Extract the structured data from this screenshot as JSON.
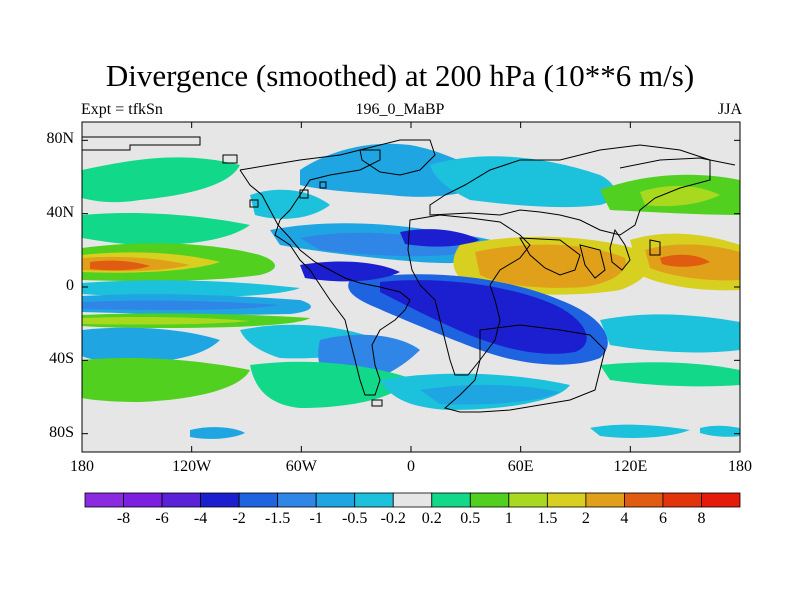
{
  "header": {
    "title": "Divergence (smoothed) at 200 hPa (10**6 m/s)",
    "left_label": "Expt = tfkSn",
    "center_label": "196_0_MaBP",
    "right_label": "JJA"
  },
  "axes": {
    "y_ticks": [
      {
        "value": 80,
        "label": "80N"
      },
      {
        "value": 40,
        "label": "40N"
      },
      {
        "value": 0,
        "label": "0"
      },
      {
        "value": -40,
        "label": "40S"
      },
      {
        "value": -80,
        "label": "80S"
      }
    ],
    "x_ticks": [
      {
        "value": -180,
        "label": "180"
      },
      {
        "value": -120,
        "label": "120W"
      },
      {
        "value": -60,
        "label": "60W"
      },
      {
        "value": 0,
        "label": "0"
      },
      {
        "value": 60,
        "label": "60E"
      },
      {
        "value": 120,
        "label": "120E"
      },
      {
        "value": 180,
        "label": "180"
      }
    ]
  },
  "colorbar": {
    "colors": [
      "#8a2be2",
      "#7b1fe0",
      "#5a22d8",
      "#1c1fd0",
      "#1e63e0",
      "#2f86e6",
      "#1fa6e2",
      "#1cc1dc",
      "#e6e6e6",
      "#12d88a",
      "#52d020",
      "#a9d91f",
      "#d8d020",
      "#e0a01a",
      "#e05c10",
      "#e3330b",
      "#e51a0a"
    ],
    "labels": [
      "-8",
      "-6",
      "-4",
      "-2",
      "-1.5",
      "-1",
      "-0.5",
      "-0.2",
      "0.2",
      "0.5",
      "1",
      "1.5",
      "2",
      "4",
      "6",
      "8"
    ]
  }
}
